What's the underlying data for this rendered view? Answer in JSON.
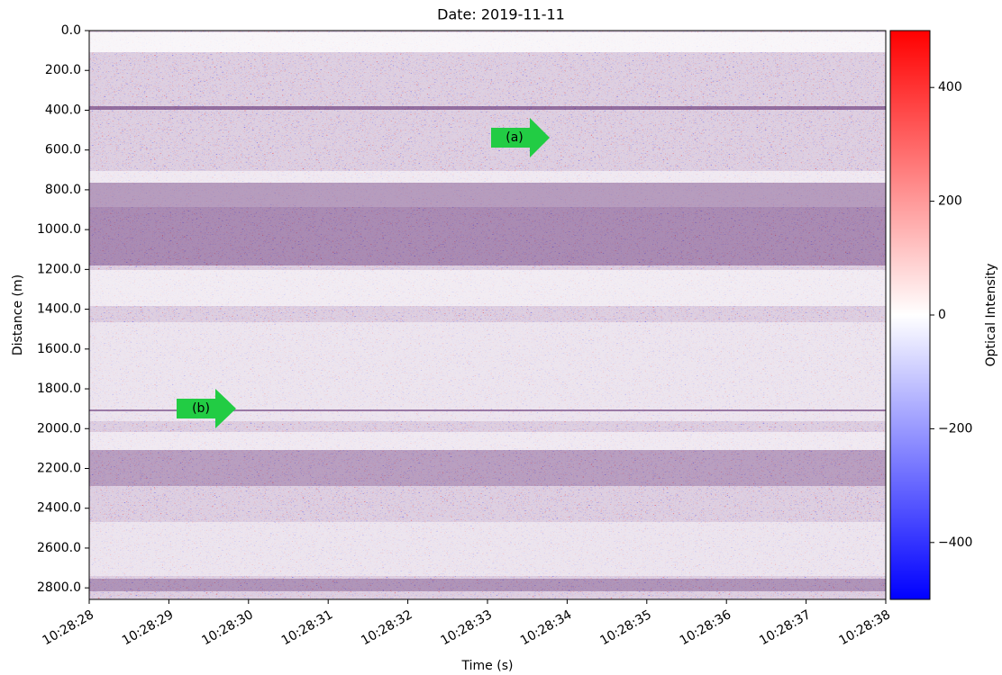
{
  "chart_data": {
    "type": "heatmap",
    "title": "Date: 2019-11-11",
    "xlabel": "Time (s)",
    "ylabel": "Distance (m)",
    "xlim": [
      "10:28:28",
      "10:28:38"
    ],
    "xticks": [
      "10:28:28",
      "10:28:29",
      "10:28:30",
      "10:28:31",
      "10:28:32",
      "10:28:33",
      "10:28:34",
      "10:28:35",
      "10:28:36",
      "10:28:37",
      "10:28:38"
    ],
    "ylim": [
      0,
      2858
    ],
    "yticks": [
      {
        "value": 0,
        "label": "0.0"
      },
      {
        "value": 200,
        "label": "200.0"
      },
      {
        "value": 400,
        "label": "400.0"
      },
      {
        "value": 600,
        "label": "600.0"
      },
      {
        "value": 800,
        "label": "800.0"
      },
      {
        "value": 1000,
        "label": "1000.0"
      },
      {
        "value": 1200,
        "label": "1200.0"
      },
      {
        "value": 1400,
        "label": "1400.0"
      },
      {
        "value": 1600,
        "label": "1600.0"
      },
      {
        "value": 1800,
        "label": "1800.0"
      },
      {
        "value": 2000,
        "label": "2000.0"
      },
      {
        "value": 2200,
        "label": "2200.0"
      },
      {
        "value": 2400,
        "label": "2400.0"
      },
      {
        "value": 2600,
        "label": "2600.0"
      },
      {
        "value": 2800,
        "label": "2800.0"
      }
    ],
    "colorbar": {
      "label": "Optical Intensity",
      "clim": [
        -500,
        500
      ],
      "ticks": [
        {
          "value": -400,
          "label": "−400"
        },
        {
          "value": -200,
          "label": "−200"
        },
        0,
        200,
        400
      ]
    },
    "annotations": [
      "(a)",
      "(b)"
    ]
  }
}
